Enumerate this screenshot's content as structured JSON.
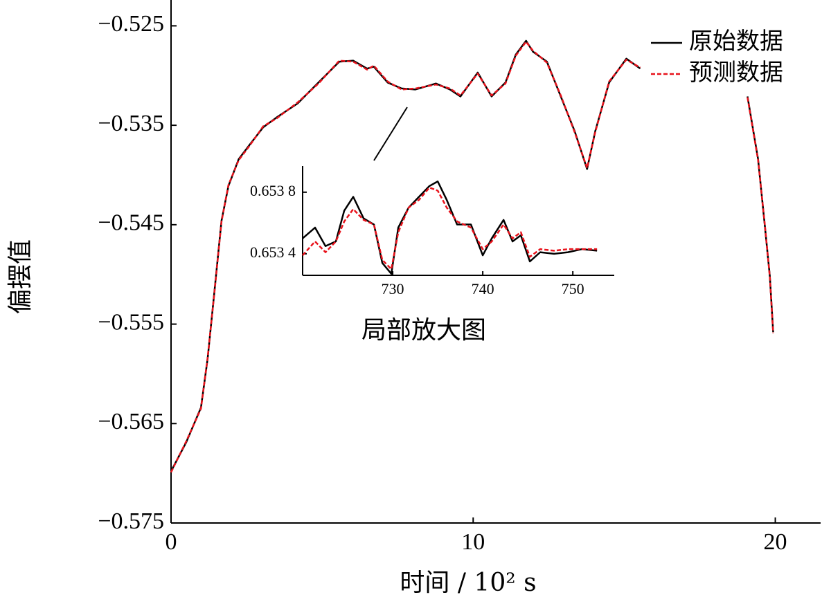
{
  "chart_data": [
    {
      "type": "line",
      "xlabel": "时间 / 10² s",
      "ylabel": "偏摆值",
      "x": [
        0,
        0.5,
        0.99,
        1.21,
        1.44,
        1.67,
        1.9,
        2.24,
        2.59,
        3.05,
        3.5,
        4.19,
        4.88,
        5.57,
        6.03,
        6.49,
        6.71,
        7.17,
        7.63,
        8.09,
        8.77,
        9.23,
        9.58,
        10.15,
        10.61,
        11.07,
        11.41,
        11.75,
        11.98,
        12.44,
        12.9,
        13.36,
        13.77,
        14.04,
        14.5,
        15.07,
        15.53,
        17,
        19.08,
        19.43,
        19.66,
        19.82,
        19.93
      ],
      "series": [
        {
          "name": "原始数据",
          "color": "#000000",
          "dash": false,
          "values": [
            -0.5698,
            -0.5669,
            -0.5634,
            -0.5585,
            -0.5516,
            -0.5446,
            -0.5411,
            -0.5384,
            -0.537,
            -0.5352,
            -0.5342,
            -0.5328,
            -0.5307,
            -0.5286,
            -0.5285,
            -0.5293,
            -0.5291,
            -0.5307,
            -0.5313,
            -0.5314,
            -0.5308,
            -0.5314,
            -0.5321,
            -0.5297,
            -0.5321,
            -0.5307,
            -0.5279,
            -0.5265,
            -0.5276,
            -0.5286,
            -0.5321,
            -0.5356,
            -0.5394,
            -0.5356,
            -0.5307,
            -0.5283,
            -0.5293,
            null,
            -0.5321,
            -0.5384,
            -0.5453,
            -0.5502,
            -0.5558
          ]
        },
        {
          "name": "预测数据",
          "color": "#e8121b",
          "dash": true,
          "values": [
            -0.5699,
            -0.5668,
            -0.5635,
            -0.5584,
            -0.5517,
            -0.5447,
            -0.541,
            -0.5385,
            -0.5371,
            -0.5351,
            -0.5343,
            -0.5327,
            -0.5308,
            -0.5285,
            -0.5286,
            -0.5294,
            -0.529,
            -0.5306,
            -0.5314,
            -0.5313,
            -0.5309,
            -0.5313,
            -0.532,
            -0.5298,
            -0.532,
            -0.5308,
            -0.528,
            -0.5266,
            -0.5275,
            -0.5287,
            -0.532,
            -0.5357,
            -0.5393,
            -0.5357,
            -0.5306,
            -0.5284,
            -0.5292,
            null,
            -0.5322,
            -0.5385,
            -0.5452,
            -0.5503,
            -0.5559
          ]
        }
      ],
      "xlim": [
        0,
        21.5
      ],
      "ylim": [
        -0.575,
        -0.5224
      ],
      "xticks": [
        0,
        10,
        20
      ],
      "yticks": [
        {
          "value": -0.575,
          "label": "−0.575"
        },
        {
          "value": -0.565,
          "label": "−0.565"
        },
        {
          "value": -0.555,
          "label": "−0.555"
        },
        {
          "value": -0.545,
          "label": "−0.545"
        },
        {
          "value": -0.535,
          "label": "−0.535"
        },
        {
          "value": -0.525,
          "label": "−0.525"
        }
      ],
      "legend": "upper right"
    },
    {
      "type": "line",
      "xlabel": "局部放大图",
      "x": [
        720,
        721.38,
        722.54,
        723.69,
        724.62,
        725.62,
        726.77,
        727.92,
        728.85,
        729.85,
        730.62,
        731.77,
        732.92,
        734.08,
        735.0,
        736.0,
        737.15,
        738.69,
        740.0,
        741.0,
        742.31,
        743.31,
        744.23,
        745.23,
        746.38,
        747.92,
        749.46,
        751.0,
        752.69
      ],
      "series": [
        {
          "name": "原始数据",
          "color": "#000000",
          "dash": false,
          "values": [
            0.6535,
            0.65357,
            0.65345,
            0.65348,
            0.65368,
            0.65377,
            0.65363,
            0.65359,
            0.65334,
            0.65327,
            0.65357,
            0.6537,
            0.65377,
            0.65384,
            0.65387,
            0.65375,
            0.65359,
            0.65359,
            0.65339,
            0.6535,
            0.65362,
            0.65348,
            0.65352,
            0.65335,
            0.65341,
            0.6534,
            0.65341,
            0.65343,
            0.65342
          ]
        },
        {
          "name": "预测数据",
          "color": "#e8121b",
          "dash": true,
          "values": [
            0.65339,
            0.65348,
            0.65341,
            0.65348,
            0.65361,
            0.65369,
            0.65362,
            0.65359,
            0.65336,
            0.6533,
            0.65354,
            0.6537,
            0.65375,
            0.65383,
            0.65381,
            0.6537,
            0.65361,
            0.65357,
            0.65343,
            0.65348,
            0.65359,
            0.6535,
            0.65354,
            0.65338,
            0.65343,
            0.65342,
            0.65343,
            0.65343,
            0.65343
          ]
        }
      ],
      "xlim": [
        720,
        754.6
      ],
      "ylim": [
        0.65326,
        0.65397
      ],
      "xticks": [
        730,
        740,
        750
      ],
      "yticks": [
        {
          "value": 0.6534,
          "label": "0.653 4"
        },
        {
          "value": 0.6538,
          "label": "0.653 8"
        }
      ]
    }
  ]
}
